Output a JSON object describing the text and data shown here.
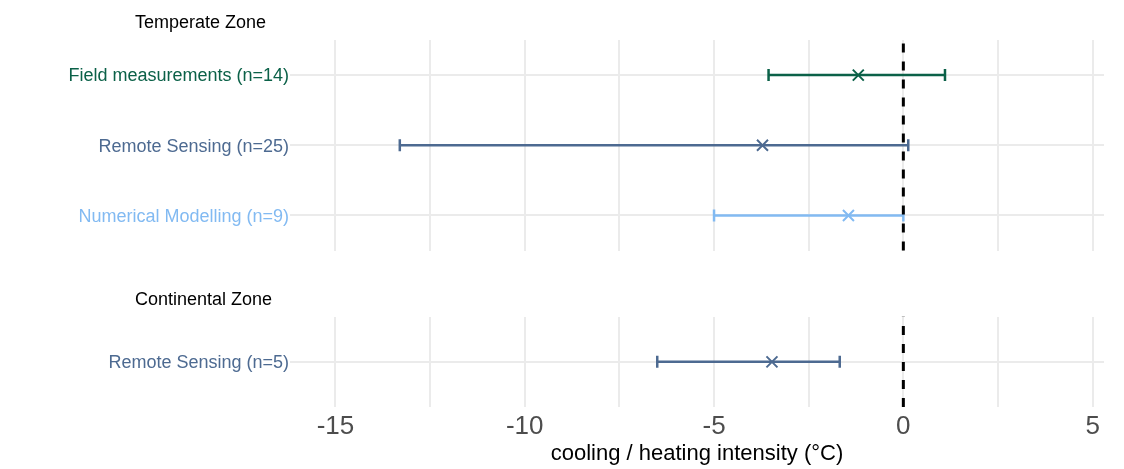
{
  "chart_data": [
    {
      "type": "scatter",
      "title": "Temperate Zone",
      "orientation": "horizontal",
      "categories": [
        "Field measurements (n=14)",
        "Remote Sensing (n=25)",
        "Numerical Modelling (n=9)"
      ],
      "values": [
        -1.19,
        -3.72,
        -1.45
      ],
      "errors": [
        [
          -3.56,
          1.1
        ],
        [
          -13.3,
          0.13
        ],
        [
          -5.0,
          0.0
        ]
      ],
      "colors": [
        "#0b6148",
        "#4d6a91",
        "#82baf2"
      ],
      "marker": "cross",
      "xlim": [
        -16.2,
        5.3
      ],
      "xticks": [
        -15,
        {
          "value": -12.5,
          "label": null
        },
        -10,
        {
          "value": -7.5,
          "label": null
        },
        -5,
        {
          "value": -2.5,
          "label": null
        },
        0,
        {
          "value": 2.5,
          "label": null
        },
        5
      ],
      "tick_labels": "y",
      "grid": true,
      "ref_lines": [
        {
          "axis": "x",
          "value": 0,
          "color": "#000000",
          "line_style": "dashed"
        }
      ]
    },
    {
      "type": "scatter",
      "title": "Continental Zone",
      "orientation": "horizontal",
      "categories": [
        "Remote Sensing (n=5)"
      ],
      "values": [
        -3.47
      ],
      "errors": [
        [
          -6.5,
          -1.68
        ]
      ],
      "colors": [
        "#4d6a91"
      ],
      "marker": "cross",
      "xlim": [
        -16.2,
        5.3
      ],
      "xticks": [
        -15,
        {
          "value": -12.5,
          "label": null
        },
        -10,
        {
          "value": -7.5,
          "label": null
        },
        -5,
        {
          "value": -2.5,
          "label": null
        },
        0,
        {
          "value": 2.5,
          "label": null
        },
        5
      ],
      "xlabel": "cooling / heating intensity (°C)",
      "grid": true,
      "ref_lines": [
        {
          "axis": "x",
          "value": 0,
          "color": "#000000",
          "line_style": "dashed"
        }
      ]
    }
  ]
}
